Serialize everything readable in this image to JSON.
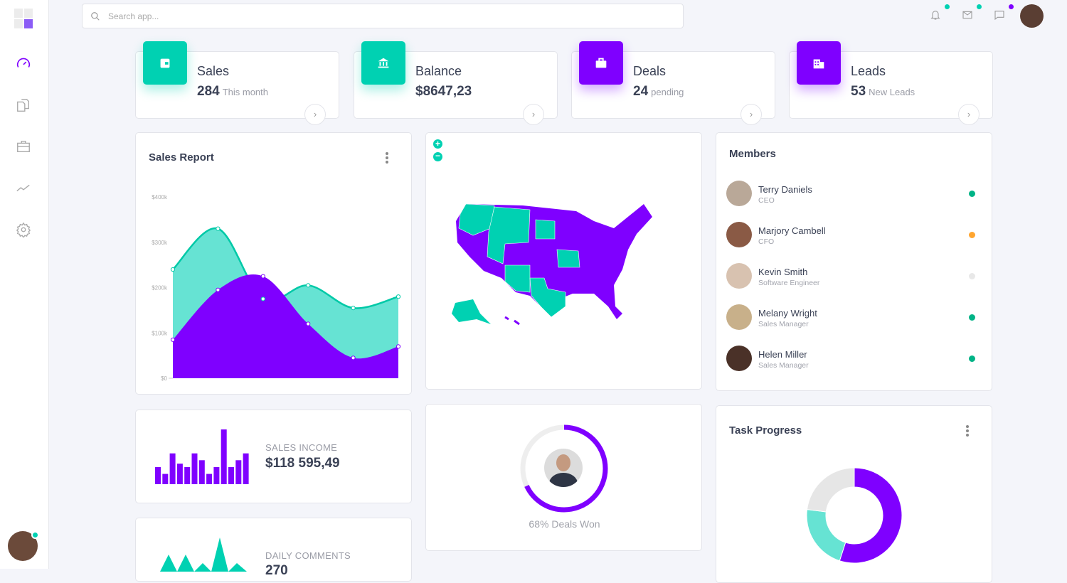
{
  "colors": {
    "teal": "#00d1b2",
    "purple": "#7f00ff",
    "light_teal": "#66e3d3",
    "grey": "#e6e6e6",
    "green": "#00b386",
    "orange": "#ffa52f"
  },
  "search": {
    "placeholder": "Search app..."
  },
  "sidebar": {
    "items": [
      {
        "icon": "speedometer-icon",
        "active": true
      },
      {
        "icon": "documents-icon"
      },
      {
        "icon": "briefcase-icon"
      },
      {
        "icon": "trend-icon"
      },
      {
        "icon": "gear-icon"
      }
    ]
  },
  "topbar": {
    "icons": [
      "bell-icon",
      "mail-icon",
      "chat-icon"
    ]
  },
  "stats": [
    {
      "title": "Sales",
      "value": "284",
      "sub": "This month",
      "icon": "wallet-icon",
      "color": "#00d1b2"
    },
    {
      "title": "Balance",
      "value": "$8647,23",
      "sub": "",
      "icon": "bank-icon",
      "color": "#00d1b2"
    },
    {
      "title": "Deals",
      "value": "24",
      "sub": "pending",
      "icon": "briefcase-icon",
      "color": "#7f00ff"
    },
    {
      "title": "Leads",
      "value": "53",
      "sub": "New Leads",
      "icon": "building-icon",
      "color": "#7f00ff"
    }
  ],
  "sales_report": {
    "title": "Sales Report"
  },
  "members": {
    "title": "Members",
    "items": [
      {
        "name": "Terry Daniels",
        "role": "CEO",
        "status": "#00b386"
      },
      {
        "name": "Marjory Cambell",
        "role": "CFO",
        "status": "#ffa52f"
      },
      {
        "name": "Kevin Smith",
        "role": "Software Engineer",
        "status": "#e8e8e8"
      },
      {
        "name": "Melany Wright",
        "role": "Sales Manager",
        "status": "#00b386"
      },
      {
        "name": "Helen Miller",
        "role": "Sales Manager",
        "status": "#00b386"
      }
    ]
  },
  "sales_income": {
    "label": "SALES INCOME",
    "value": "$118 595,49"
  },
  "daily_comments": {
    "label": "DAILY COMMENTS",
    "value": "270"
  },
  "deals_won": {
    "label": "68% Deals Won",
    "percent": 68
  },
  "task_progress": {
    "title": "Task Progress"
  },
  "chart_data": [
    {
      "type": "area",
      "title": "Sales Report",
      "yticks": [
        "$0",
        "$100k",
        "$200k",
        "$300k",
        "$400k"
      ],
      "ylim": [
        0,
        400000
      ],
      "grid": false,
      "series": [
        {
          "values": [
            240000,
            330000,
            175000,
            205000,
            155000,
            180000
          ],
          "color": "#66e3d3"
        },
        {
          "values": [
            85000,
            195000,
            225000,
            120000,
            45000,
            70000
          ],
          "color": "#7f00ff"
        }
      ]
    },
    {
      "type": "bar",
      "values": [
        5,
        3,
        9,
        6,
        5,
        9,
        7,
        3,
        5,
        16,
        5,
        7,
        9
      ],
      "color": "#7f00ff"
    },
    {
      "type": "area",
      "values": [
        0,
        2,
        0,
        2,
        0,
        1,
        0,
        4,
        0,
        1
      ],
      "color": "#00d1b2"
    },
    {
      "type": "pie",
      "values": [
        55,
        22,
        23
      ],
      "colors": [
        "#7f00ff",
        "#66e3d3",
        "#e6e6e6"
      ],
      "donut": true
    }
  ]
}
